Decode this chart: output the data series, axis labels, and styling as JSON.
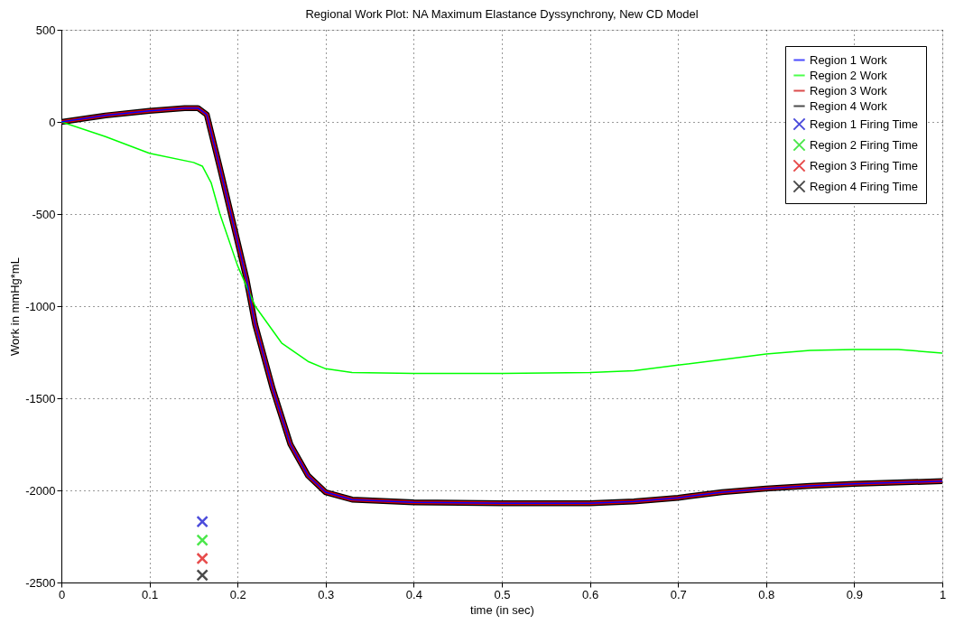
{
  "chart_data": {
    "type": "line",
    "title": "Regional Work Plot:  NA Maximum Elastance Dyssynchrony, New CD Model",
    "xlabel": "time (in sec)",
    "ylabel": "Work in mmHg*mL",
    "xlim": [
      0,
      1
    ],
    "xticks": [
      0,
      0.1,
      0.2,
      0.3,
      0.4,
      0.5,
      0.6,
      0.7,
      0.8,
      0.9,
      1
    ],
    "ylim": [
      -2500,
      500
    ],
    "yticks": [
      -2500,
      -2000,
      -1500,
      -1000,
      -500,
      0,
      500
    ],
    "grid": true,
    "legend": "top right",
    "series": [
      {
        "name": "Region 1 Work",
        "color": "#0000ff",
        "x": [
          0,
          0.05,
          0.1,
          0.14,
          0.155,
          0.165,
          0.18,
          0.2,
          0.21,
          0.22,
          0.24,
          0.26,
          0.28,
          0.3,
          0.33,
          0.4,
          0.5,
          0.6,
          0.65,
          0.7,
          0.75,
          0.8,
          0.85,
          0.9,
          1.0
        ],
        "values": [
          0,
          35,
          60,
          75,
          75,
          40,
          -250,
          -650,
          -850,
          -1100,
          -1450,
          -1750,
          -1920,
          -2010,
          -2050,
          -2065,
          -2070,
          -2070,
          -2060,
          -2040,
          -2010,
          -1990,
          -1975,
          -1965,
          -1950
        ]
      },
      {
        "name": "Region 2 Work",
        "color": "#00ff00",
        "x": [
          0,
          0.05,
          0.1,
          0.15,
          0.16,
          0.17,
          0.18,
          0.2,
          0.22,
          0.25,
          0.28,
          0.3,
          0.33,
          0.4,
          0.5,
          0.6,
          0.65,
          0.7,
          0.75,
          0.8,
          0.85,
          0.9,
          0.95,
          1.0
        ],
        "values": [
          0,
          -80,
          -170,
          -220,
          -240,
          -330,
          -500,
          -780,
          -1000,
          -1200,
          -1300,
          -1340,
          -1360,
          -1365,
          -1365,
          -1360,
          -1350,
          -1320,
          -1290,
          -1260,
          -1240,
          -1235,
          -1235,
          -1255
        ]
      },
      {
        "name": "Region 3 Work",
        "color": "#cc0000",
        "x": [
          0,
          0.05,
          0.1,
          0.14,
          0.155,
          0.165,
          0.18,
          0.2,
          0.21,
          0.22,
          0.24,
          0.26,
          0.28,
          0.3,
          0.33,
          0.4,
          0.5,
          0.6,
          0.65,
          0.7,
          0.75,
          0.8,
          0.85,
          0.9,
          1.0
        ],
        "values": [
          0,
          35,
          60,
          75,
          75,
          40,
          -250,
          -650,
          -850,
          -1100,
          -1450,
          -1750,
          -1920,
          -2010,
          -2050,
          -2065,
          -2070,
          -2070,
          -2060,
          -2040,
          -2010,
          -1990,
          -1975,
          -1965,
          -1950
        ]
      },
      {
        "name": "Region 4 Work",
        "color": "#000000",
        "x": [
          0,
          0.05,
          0.1,
          0.14,
          0.155,
          0.165,
          0.18,
          0.2,
          0.21,
          0.22,
          0.24,
          0.26,
          0.28,
          0.3,
          0.33,
          0.4,
          0.5,
          0.6,
          0.65,
          0.7,
          0.75,
          0.8,
          0.85,
          0.9,
          1.0
        ],
        "values": [
          0,
          35,
          60,
          75,
          75,
          40,
          -250,
          -650,
          -850,
          -1100,
          -1450,
          -1750,
          -1920,
          -2010,
          -2050,
          -2065,
          -2070,
          -2070,
          -2060,
          -2040,
          -2010,
          -1990,
          -1975,
          -1965,
          -1950
        ]
      },
      {
        "name": "Region 1 Firing Time",
        "type": "scatter",
        "marker": "cross",
        "color": "#0000cc",
        "x": [
          0.16
        ],
        "values": [
          -2170
        ]
      },
      {
        "name": "Region 2 Firing Time",
        "type": "scatter",
        "marker": "cross",
        "color": "#00dd00",
        "x": [
          0.16
        ],
        "values": [
          -2270
        ]
      },
      {
        "name": "Region 3 Firing Time",
        "type": "scatter",
        "marker": "cross",
        "color": "#dd0000",
        "x": [
          0.16
        ],
        "values": [
          -2370
        ]
      },
      {
        "name": "Region 4 Firing Time",
        "type": "scatter",
        "marker": "cross",
        "color": "#000000",
        "x": [
          0.16
        ],
        "values": [
          -2460
        ]
      }
    ]
  }
}
